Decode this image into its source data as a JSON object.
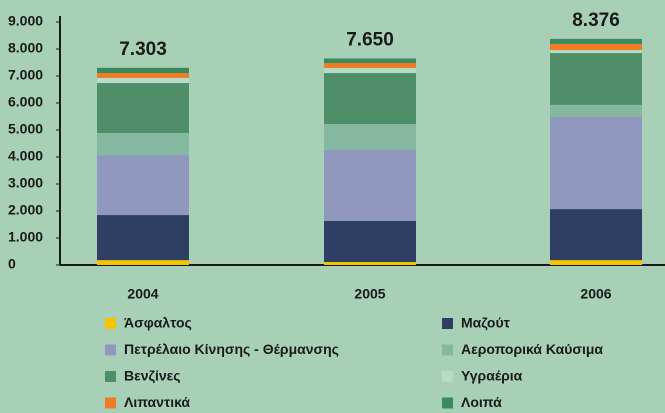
{
  "chart_data": {
    "type": "stacked_bar",
    "categories": [
      "2004",
      "2005",
      "2006"
    ],
    "series": [
      {
        "name": "Άσφαλτος",
        "color": "#f5c400",
        "values": [
          180,
          110,
          180
        ]
      },
      {
        "name": "Μαζούτ",
        "color": "#2e3f63",
        "values": [
          1670,
          1520,
          1890
        ]
      },
      {
        "name": "Πετρέλαιο Κίνησης - Θέρμανσης",
        "color": "#9198be",
        "values": [
          2220,
          2630,
          3410
        ]
      },
      {
        "name": "Αεροπορικά Καύσιμα",
        "color": "#86b8a1",
        "values": [
          820,
          960,
          450
        ]
      },
      {
        "name": "Βενζίνες",
        "color": "#4e8f6a",
        "values": [
          1850,
          1890,
          1920
        ]
      },
      {
        "name": "Υγραέρια",
        "color": "#b6dbc8",
        "values": [
          190,
          190,
          110
        ]
      },
      {
        "name": "Λιπαντικά",
        "color": "#f07b22",
        "values": [
          180,
          180,
          230
        ]
      },
      {
        "name": "Λοιπά",
        "color": "#3b8a5e",
        "values": [
          193,
          170,
          186
        ]
      }
    ],
    "totals": {
      "values": [
        7303,
        7650,
        8376
      ],
      "value_labels": [
        "7.303",
        "7.650",
        "8.376"
      ]
    },
    "ylim": [
      0,
      9000
    ],
    "yticks": [
      0,
      {
        "value": 1000,
        "label": "1.000"
      },
      {
        "value": 2000,
        "label": "2.000"
      },
      {
        "value": 3000,
        "label": "3.000"
      },
      {
        "value": 4000,
        "label": "4.000"
      },
      {
        "value": 5000,
        "label": "5.000"
      },
      {
        "value": 6000,
        "label": "6.000"
      },
      {
        "value": 7000,
        "label": "7.000"
      },
      {
        "value": 8000,
        "label": "8.000"
      },
      {
        "value": 9000,
        "label": "9.000"
      }
    ]
  }
}
